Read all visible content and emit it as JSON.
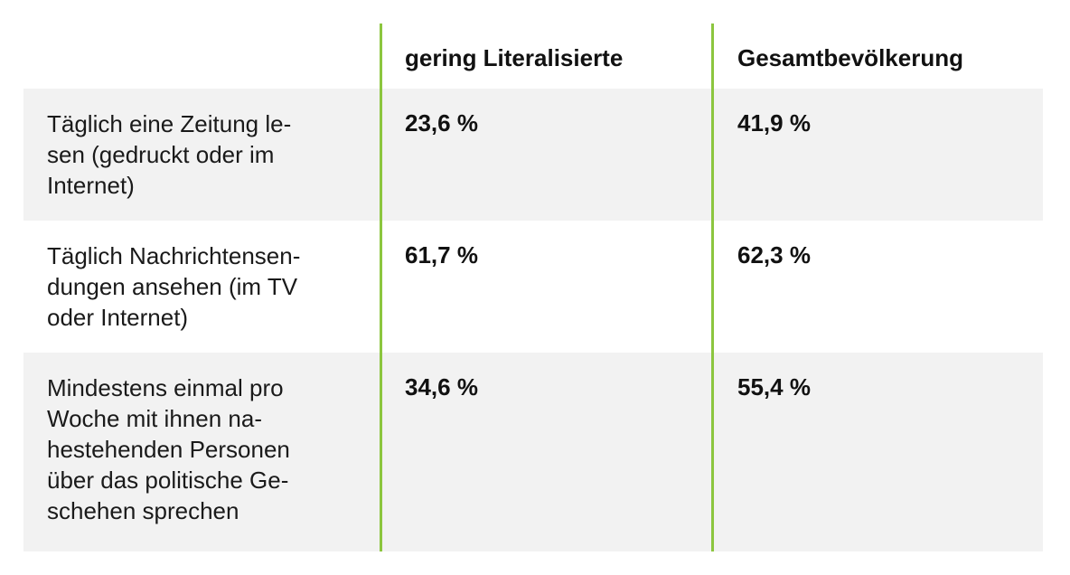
{
  "table": {
    "columns": [
      "",
      "gering Literalisierte",
      "Gesamtbevölkerung"
    ],
    "rows": [
      {
        "label": "Täglich eine Zeitung le-\nsen (gedruckt oder im\nInternet)",
        "gering": "23,6 %",
        "gesamt": "41,9 %"
      },
      {
        "label": "Täglich Nachrichtensen-\ndungen ansehen (im TV\noder Internet)",
        "gering": "61,7 %",
        "gesamt": "62,3 %"
      },
      {
        "label": "Mindestens einmal pro\nWoche mit ihnen na-\nhestehenden Personen\nüber das politische Ge-\nschehen sprechen",
        "gering": "34,6 %",
        "gesamt": "55,4 %"
      }
    ]
  },
  "colors": {
    "divider": "#8cc63f",
    "stripe": "#f2f2f2",
    "text": "#111111"
  }
}
